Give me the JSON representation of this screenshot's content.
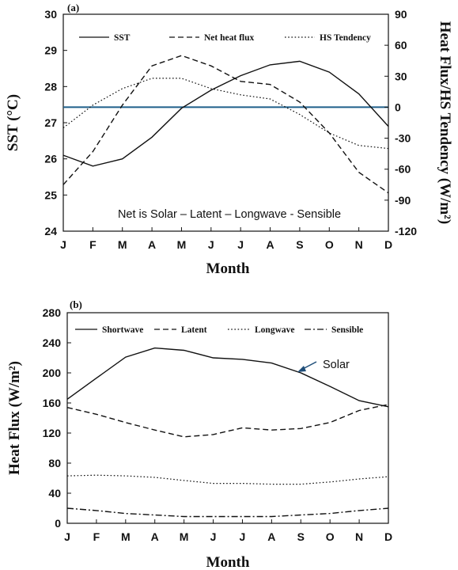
{
  "chart_data": [
    {
      "panel": "(a)",
      "type": "line",
      "categories": [
        "J",
        "F",
        "M",
        "A",
        "M",
        "J",
        "J",
        "A",
        "S",
        "O",
        "N",
        "D"
      ],
      "xlabel": "Month",
      "ylabel": "SST (°C)",
      "ylabel_right": "Heat Flux/HS Tendency (W/m²)",
      "ylim": [
        24,
        30
      ],
      "yticks": [
        24,
        25,
        26,
        27,
        28,
        29,
        30
      ],
      "ylim_right": [
        -120,
        90
      ],
      "yticks_right": [
        -120,
        -90,
        -60,
        -30,
        0,
        30,
        60,
        90
      ],
      "annotation": "Net is Solar – Latent – Longwave - Sensible",
      "reference_line": {
        "axis": "right",
        "value": 0,
        "color": "#1f5f8a"
      },
      "legend_position": "top",
      "series": [
        {
          "name": "SST",
          "axis": "left",
          "style": "solid",
          "values": [
            26.1,
            25.8,
            26.0,
            26.6,
            27.4,
            27.9,
            28.3,
            28.6,
            28.7,
            28.4,
            27.8,
            26.9
          ]
        },
        {
          "name": "Net heat flux",
          "axis": "right",
          "style": "dashed",
          "values": [
            -75,
            -43,
            2,
            40,
            50,
            40,
            25,
            22,
            5,
            -25,
            -63,
            -83
          ]
        },
        {
          "name": "HS Tendency",
          "axis": "right",
          "style": "dotted",
          "values": [
            -20,
            2,
            18,
            28,
            28,
            18,
            12,
            8,
            -7,
            -25,
            -37,
            -40
          ]
        }
      ]
    },
    {
      "panel": "(b)",
      "type": "line",
      "categories": [
        "J",
        "F",
        "M",
        "A",
        "M",
        "J",
        "J",
        "A",
        "S",
        "O",
        "N",
        "D"
      ],
      "xlabel": "Month",
      "ylabel": "Heat Flux (W/m²)",
      "ylim": [
        0,
        280
      ],
      "yticks": [
        0,
        40,
        80,
        120,
        160,
        200,
        240,
        280
      ],
      "annotation": "Solar",
      "legend_position": "top",
      "series": [
        {
          "name": "Shortwave",
          "style": "solid",
          "values": [
            165,
            193,
            221,
            233,
            230,
            220,
            218,
            213,
            200,
            182,
            163,
            155
          ]
        },
        {
          "name": "Latent",
          "style": "dashed",
          "values": [
            154,
            145,
            134,
            124,
            115,
            118,
            127,
            124,
            126,
            134,
            150,
            158
          ]
        },
        {
          "name": "Longwave",
          "style": "dotted",
          "values": [
            63,
            64,
            63,
            61,
            57,
            53,
            53,
            52,
            52,
            55,
            59,
            62
          ]
        },
        {
          "name": "Sensible",
          "style": "dashdot",
          "values": [
            20,
            17,
            13,
            11,
            9,
            9,
            9,
            9,
            11,
            13,
            17,
            20
          ]
        }
      ]
    }
  ]
}
